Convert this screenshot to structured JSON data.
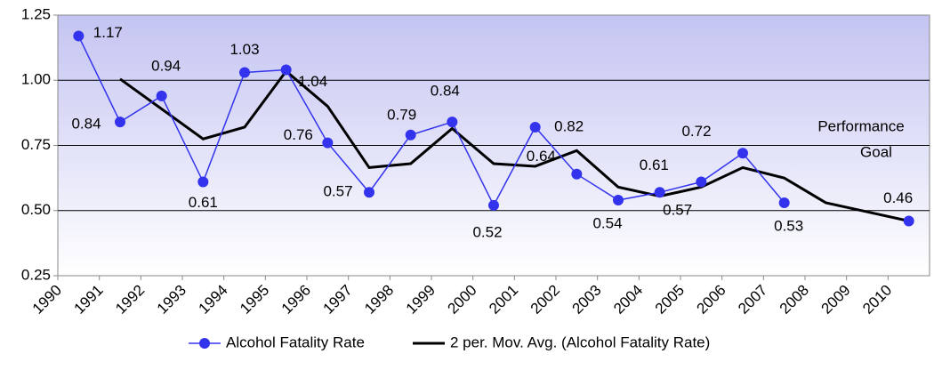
{
  "chart_data": {
    "type": "line",
    "categories": [
      "1990",
      "1991",
      "1992",
      "1993",
      "1994",
      "1995",
      "1996",
      "1997",
      "1998",
      "1999",
      "2000",
      "2001",
      "2002",
      "2003",
      "2004",
      "2005",
      "2006",
      "2007",
      "2008",
      "2009",
      "2010"
    ],
    "series": [
      {
        "name": "Alcohol Fatality Rate",
        "color": "#3333ee",
        "marker": true,
        "data_labels": true,
        "values": [
          1.17,
          0.84,
          0.94,
          0.61,
          1.03,
          1.04,
          0.76,
          0.57,
          0.79,
          0.84,
          0.52,
          0.82,
          0.64,
          0.54,
          0.57,
          0.61,
          0.72,
          0.53,
          null,
          null,
          0.46
        ]
      },
      {
        "name": "2 per. Mov. Avg. (Alcohol Fatality Rate)",
        "color": "#000000",
        "marker": false,
        "data_labels": false,
        "values": [
          null,
          1.005,
          0.89,
          0.775,
          0.82,
          1.035,
          0.9,
          0.665,
          0.68,
          0.815,
          0.68,
          0.67,
          0.73,
          0.59,
          0.555,
          0.59,
          0.665,
          0.625,
          0.53,
          0.495,
          0.46
        ]
      }
    ],
    "ylim": [
      0.25,
      1.25
    ],
    "yticks": [
      {
        "value": 0.25,
        "label": "0.25"
      },
      {
        "value": 0.5,
        "label": "0.50"
      },
      {
        "value": 0.75,
        "label": "0.75"
      },
      {
        "value": 1.0,
        "label": "1.00"
      },
      {
        "value": 1.25,
        "label": "1.25"
      }
    ],
    "grid": true,
    "annotations": [
      "Performance",
      "Goal"
    ],
    "legend": "bottom"
  }
}
